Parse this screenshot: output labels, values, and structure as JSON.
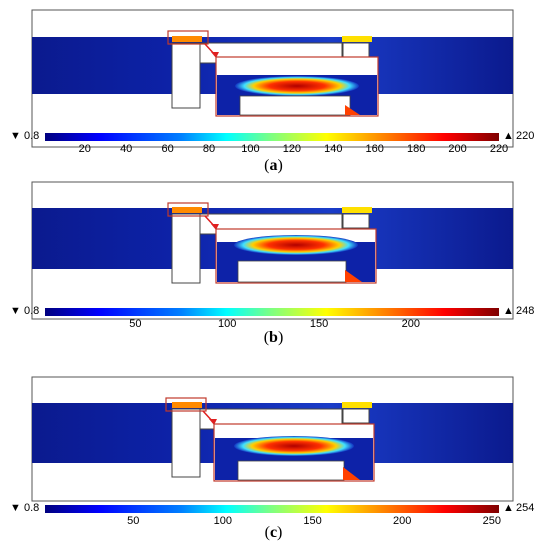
{
  "panels": [
    {
      "caption_letter": "a",
      "colorbar": {
        "min_label": "0.8",
        "max_label": "220",
        "ticks": [
          20,
          40,
          60,
          80,
          100,
          120,
          140,
          160,
          180,
          200,
          220
        ],
        "range": [
          0.8,
          220
        ]
      }
    },
    {
      "caption_letter": "b",
      "colorbar": {
        "min_label": "0.8",
        "max_label": "248",
        "ticks": [
          50,
          100,
          150,
          200
        ],
        "range": [
          0.8,
          248
        ]
      }
    },
    {
      "caption_letter": "c",
      "colorbar": {
        "min_label": "0.8",
        "max_label": "254",
        "ticks": [
          50,
          100,
          150,
          200,
          250
        ],
        "range": [
          0.8,
          254
        ]
      }
    }
  ],
  "colors": {
    "domain_blue": "#0a1a9a",
    "inset_frame": "#c0392b",
    "hot": "#ff2a00",
    "warm": "#ffd000"
  },
  "symbols": {
    "min_marker": "▼",
    "max_marker": "▲"
  }
}
